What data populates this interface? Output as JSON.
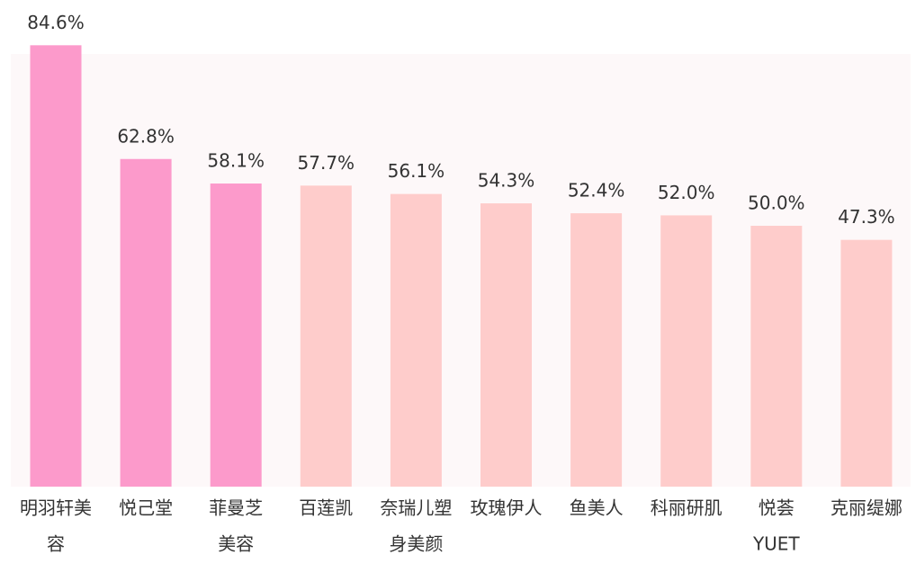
{
  "chart_data": {
    "type": "bar",
    "categories": [
      [
        "明羽轩美",
        "容"
      ],
      [
        "悦己堂"
      ],
      [
        "菲曼芝",
        "美容"
      ],
      [
        "百莲凯"
      ],
      [
        "奈瑞儿塑",
        "身美颜"
      ],
      [
        "玫瑰伊人"
      ],
      [
        "鱼美人"
      ],
      [
        "科丽研肌"
      ],
      [
        "悦荟",
        "YUET"
      ],
      [
        "克丽缇娜"
      ]
    ],
    "values": [
      84.6,
      62.8,
      58.1,
      57.7,
      56.1,
      54.3,
      52.4,
      52.0,
      50.0,
      47.3
    ],
    "value_labels": [
      "84.6%",
      "62.8%",
      "58.1%",
      "57.7%",
      "56.1%",
      "54.3%",
      "52.4%",
      "52.0%",
      "50.0%",
      "47.3%"
    ],
    "colors": [
      "#fc9acb",
      "#fc9acb",
      "#fc9acb",
      "#fecccb",
      "#fecccb",
      "#fecccb",
      "#fecccb",
      "#fecccb",
      "#fecccb",
      "#fecccb"
    ]
  }
}
